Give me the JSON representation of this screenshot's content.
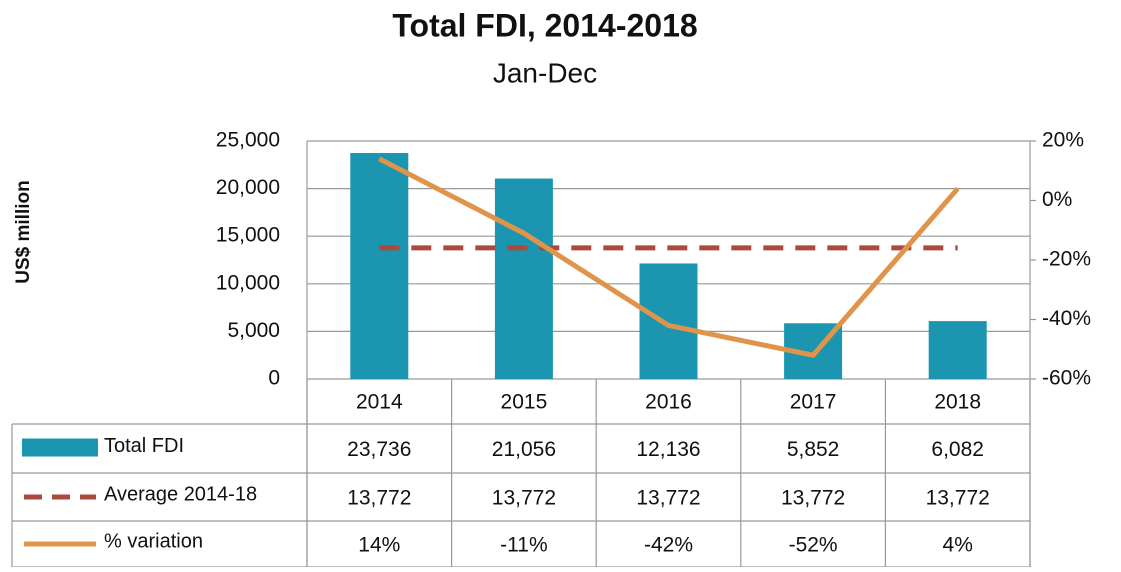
{
  "chart_data": {
    "type": "bar",
    "title": "Total FDI, 2014-2018",
    "subtitle": "Jan-Dec",
    "y_label": "US$ million",
    "categories": [
      "2014",
      "2015",
      "2016",
      "2017",
      "2018"
    ],
    "series": [
      {
        "name": "Total FDI",
        "type": "bar",
        "color": "#1b95b0",
        "values": [
          23736,
          21056,
          12136,
          5852,
          6082
        ],
        "value_labels": [
          "23,736",
          "21,056",
          "12,136",
          "5,852",
          "6,082"
        ]
      },
      {
        "name": "Average 2014-18",
        "type": "dashed-line",
        "color": "#a94a3c",
        "values": [
          13772,
          13772,
          13772,
          13772,
          13772
        ],
        "value_labels": [
          "13,772",
          "13,772",
          "13,772",
          "13,772",
          "13,772"
        ]
      },
      {
        "name": "% variation",
        "type": "line",
        "axis": "y2",
        "color": "#e0944a",
        "values": [
          14,
          -11,
          -42,
          -52,
          4
        ],
        "value_labels": [
          "14%",
          "-11%",
          "-42%",
          "-52%",
          "4%"
        ]
      }
    ],
    "ylim": [
      0,
      25000
    ],
    "yticks": [
      0,
      {
        "value": 5000,
        "label": "5,000"
      },
      {
        "value": 10000,
        "label": "10,000"
      },
      {
        "value": 15000,
        "label": "15,000"
      },
      {
        "value": 20000,
        "label": "20,000"
      },
      {
        "value": 25000,
        "label": "25,000"
      }
    ],
    "y2lim": [
      -60,
      20
    ],
    "y2ticks": [
      {
        "value": -60,
        "label": "-60%"
      },
      {
        "value": -40,
        "label": "-40%"
      },
      {
        "value": -20,
        "label": "-20%"
      },
      {
        "value": 0,
        "label": "0%"
      },
      {
        "value": 20,
        "label": "20%"
      }
    ],
    "grid": true
  }
}
